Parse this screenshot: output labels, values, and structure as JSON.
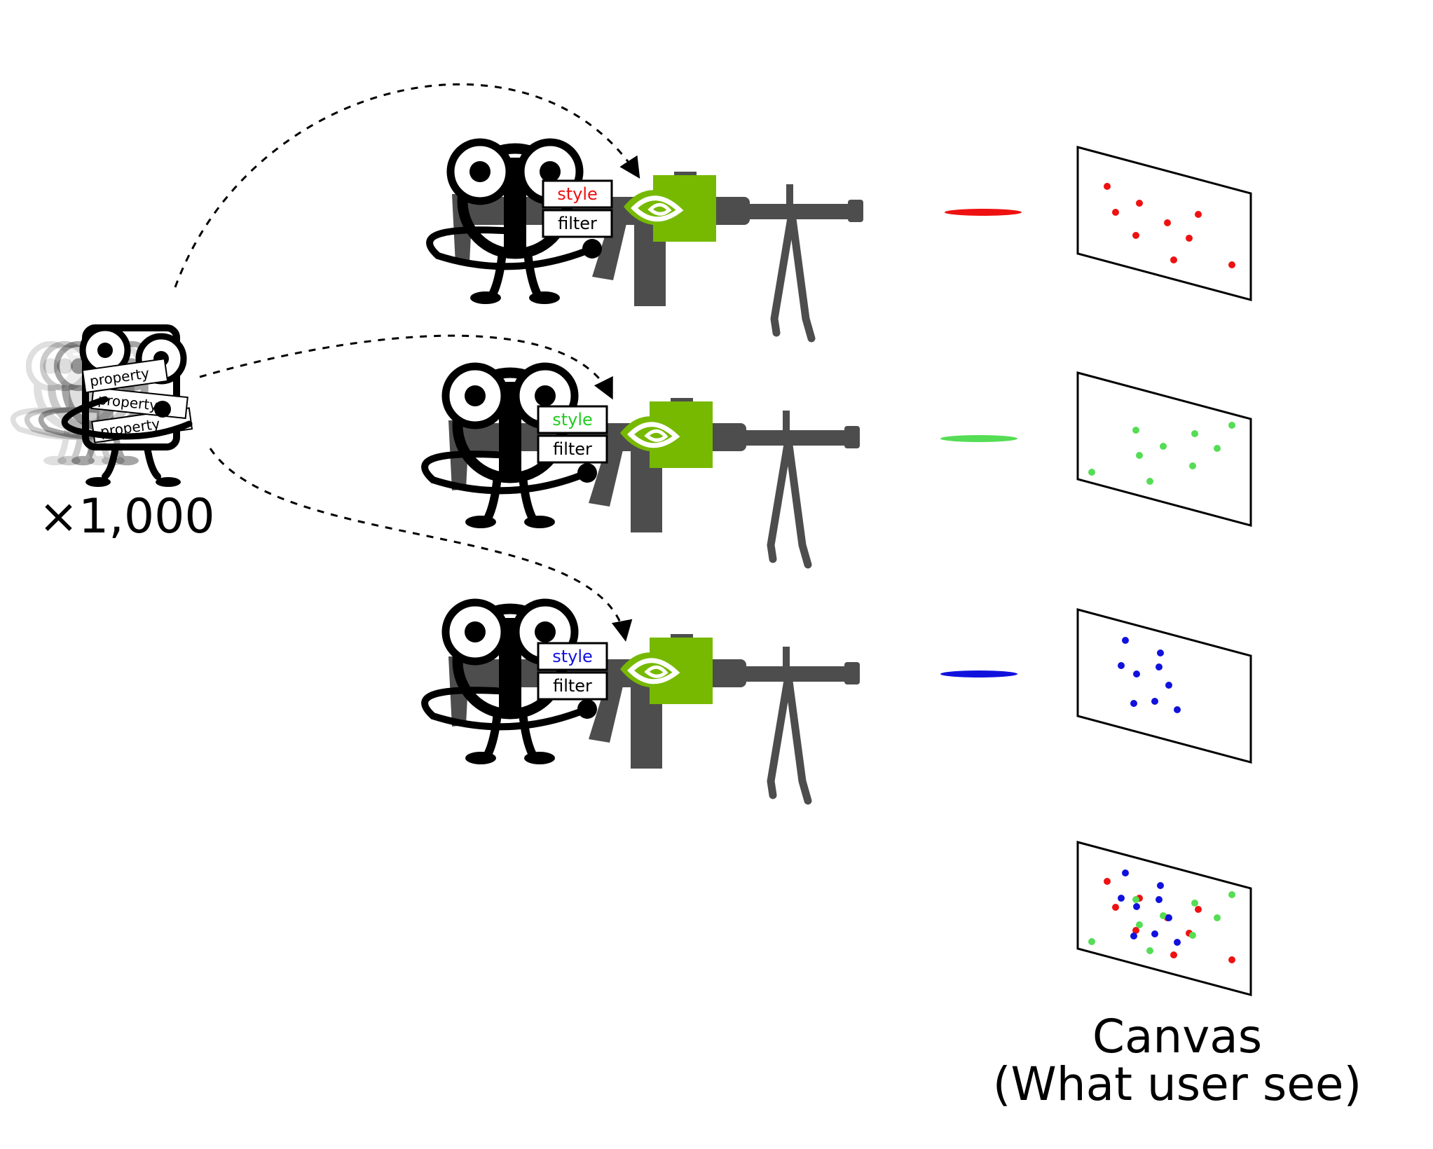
{
  "source": {
    "multiplier": "×1,000",
    "card_labels": [
      "property",
      "property",
      "property"
    ]
  },
  "shooters": [
    {
      "style_label": "style",
      "filter_label": "filter",
      "color": "#ee1111"
    },
    {
      "style_label": "style",
      "filter_label": "filter",
      "color": "#22cc22"
    },
    {
      "style_label": "style",
      "filter_label": "filter",
      "color": "#1111dd"
    }
  ],
  "colors": {
    "gpu_green": "#76b900",
    "gun_gray": "#4d4d4d",
    "green_dot": "#55dd55"
  },
  "icons": [
    "nvidia-logo-icon",
    "machine-gun-icon",
    "mascot-icon"
  ],
  "canvas": {
    "title": "Canvas",
    "subtitle": "(What user see)"
  }
}
